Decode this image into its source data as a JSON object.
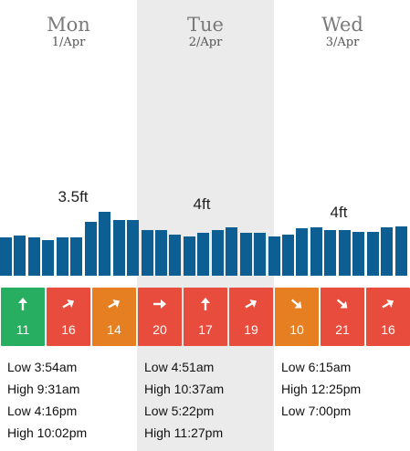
{
  "days": [
    {
      "name": "Mon",
      "date": "1/Apr",
      "height": "3.5ft",
      "highlight": false
    },
    {
      "name": "Tue",
      "date": "2/Apr",
      "height": "4ft",
      "highlight": true
    },
    {
      "name": "Wed",
      "date": "3/Apr",
      "height": "4ft",
      "highlight": false
    }
  ],
  "swell_bars": [
    0.56,
    0.59,
    0.56,
    0.52,
    0.56,
    0.56,
    0.78,
    0.93,
    0.82,
    0.82,
    0.66,
    0.66,
    0.6,
    0.57,
    0.63,
    0.66,
    0.71,
    0.63,
    0.63,
    0.57,
    0.6,
    0.69,
    0.71,
    0.66,
    0.67,
    0.64,
    0.64,
    0.71,
    0.72
  ],
  "winds": [
    {
      "speed": "11",
      "direction": "up",
      "color": "#27ae60"
    },
    {
      "speed": "16",
      "direction": "up-right",
      "color": "#e74c3c"
    },
    {
      "speed": "14",
      "direction": "up-right",
      "color": "#e67e22"
    },
    {
      "speed": "20",
      "direction": "right",
      "color": "#e74c3c"
    },
    {
      "speed": "17",
      "direction": "up",
      "color": "#e74c3c"
    },
    {
      "speed": "19",
      "direction": "up-right",
      "color": "#e74c3c"
    },
    {
      "speed": "10",
      "direction": "down-right",
      "color": "#e67e22"
    },
    {
      "speed": "21",
      "direction": "down-right",
      "color": "#e74c3c"
    },
    {
      "speed": "16",
      "direction": "up-right",
      "color": "#e74c3c"
    }
  ],
  "tides": [
    [
      "Low 3:54am",
      "High 9:31am",
      "Low 4:16pm",
      "High 10:02pm"
    ],
    [
      "Low 4:51am",
      "High 10:37am",
      "Low 5:22pm",
      "High 11:27pm"
    ],
    [
      "Low 6:15am",
      "High 12:25pm",
      "Low 7:00pm"
    ]
  ]
}
